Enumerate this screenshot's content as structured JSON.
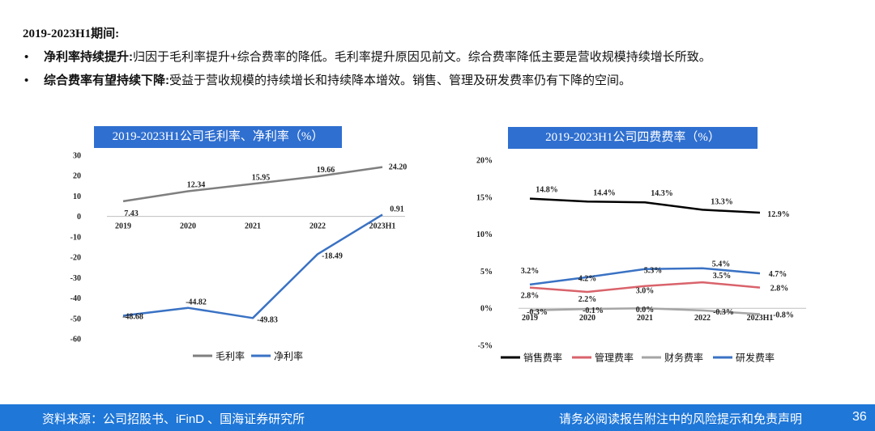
{
  "intro": {
    "period": "2019-2023H1期间:",
    "bullets": [
      {
        "bullet": "•",
        "title": "净利率持续提升:",
        "text": "归因于毛利率提升+综合费率的降低。毛利率提升原因见前文。综合费率降低主要是营收规模持续增长所致。"
      },
      {
        "bullet": "•",
        "title": "综合费率有望持续下降:",
        "text": "受益于营收规模的持续增长和持续降本增效。销售、管理及研发费率仍有下降的空间。"
      }
    ]
  },
  "chart_data": [
    {
      "type": "line",
      "title": "2019-2023H1公司毛利率、净利率（%）",
      "categories": [
        "2019",
        "2020",
        "2021",
        "2022",
        "2023H1"
      ],
      "ylim": [
        -60,
        30
      ],
      "yticks": [
        "30",
        "20",
        "10",
        "0",
        "-10",
        "-20",
        "-30",
        "-40",
        "-50",
        "-60"
      ],
      "grid": false,
      "legend": "bottom",
      "series": [
        {
          "name": "毛利率",
          "color": "#7f7f7f",
          "values": [
            7.43,
            12.34,
            15.95,
            19.66,
            24.2
          ],
          "labels": [
            "7.43",
            "12.34",
            "15.95",
            "19.66",
            "24.20"
          ]
        },
        {
          "name": "净利率",
          "color": "#3a72c4",
          "values": [
            -48.68,
            -44.82,
            -49.83,
            -18.49,
            0.91
          ],
          "labels": [
            "-48.68",
            "-44.82",
            "-49.83",
            "-18.49",
            "0.91"
          ]
        }
      ]
    },
    {
      "type": "line",
      "title": "2019-2023H1公司四费费率（%）",
      "categories": [
        "2019",
        "2020",
        "2021",
        "2022",
        "2023H1"
      ],
      "ylim": [
        -5,
        20
      ],
      "yticks": [
        "20%",
        "15%",
        "10%",
        "5%",
        "0%",
        "-5%"
      ],
      "grid": false,
      "legend": "bottom",
      "series": [
        {
          "name": "销售费率",
          "color": "#000000",
          "values": [
            14.8,
            14.4,
            14.3,
            13.3,
            12.9
          ],
          "labels": [
            "14.8%",
            "14.4%",
            "14.3%",
            "13.3%",
            "12.9%"
          ]
        },
        {
          "name": "管理费率",
          "color": "#d9636b",
          "values": [
            2.8,
            2.2,
            3.0,
            3.5,
            2.8
          ],
          "labels": [
            "2.8%",
            "2.2%",
            "3.0%",
            "3.5%",
            "2.8%"
          ]
        },
        {
          "name": "财务费率",
          "color": "#a5a5a5",
          "values": [
            -0.3,
            -0.1,
            0.0,
            -0.3,
            -0.8
          ],
          "labels": [
            "-0.3%",
            "-0.1%",
            "0.0%",
            "-0.3%",
            "-0.8%"
          ]
        },
        {
          "name": "研发费率",
          "color": "#3a72c4",
          "values": [
            3.2,
            4.2,
            5.3,
            5.4,
            4.7
          ],
          "labels": [
            "3.2%",
            "4.2%",
            "5.3%",
            "5.4%",
            "4.7%"
          ]
        }
      ]
    }
  ],
  "footer": {
    "source": "资料来源：公司招股书、iFinD 、国海证券研究所",
    "disclaimer": "请务必阅读报告附注中的风险提示和免责声明",
    "page": "36"
  }
}
